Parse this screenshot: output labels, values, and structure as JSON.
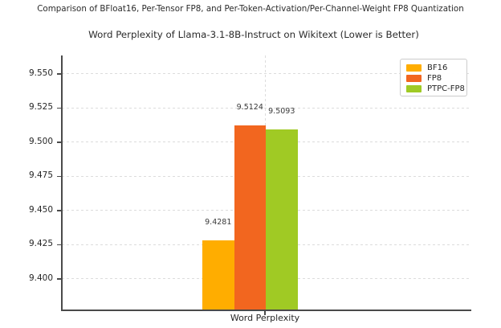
{
  "figure": {
    "suptitle": "Comparison of BFloat16, Per-Tensor FP8, and Per-Token-Activation/Per-Channel-Weight FP8 Quantization"
  },
  "chart_data": {
    "type": "bar",
    "title": "Word Perplexity of Llama-3.1-8B-Instruct on Wikitext (Lower is Better)",
    "categories": [
      "Word Perplexity"
    ],
    "series": [
      {
        "name": "BF16",
        "values": [
          9.4281
        ],
        "value_label": "9.4281",
        "color": "#FFAD00"
      },
      {
        "name": "FP8",
        "values": [
          9.5124
        ],
        "value_label": "9.5124",
        "color": "#F2661F"
      },
      {
        "name": "PTPC-FP8",
        "values": [
          9.5093
        ],
        "value_label": "9.5093",
        "color": "#A0CA24"
      }
    ],
    "xlabel": "",
    "ylabel": "",
    "ylim": [
      9.377,
      9.5635
    ],
    "yticks": [
      9.4,
      9.425,
      9.45,
      9.475,
      9.5,
      9.525,
      9.55
    ],
    "ytick_labels": [
      "9.400",
      "9.425",
      "9.450",
      "9.475",
      "9.500",
      "9.525",
      "9.550"
    ],
    "grid": true,
    "grid_style": "dashed",
    "legend_position": "upper right",
    "colors": {
      "axis": "#4a4a4a",
      "grid": "#dcdcdc",
      "text": "#262626",
      "background": "#ffffff"
    }
  }
}
